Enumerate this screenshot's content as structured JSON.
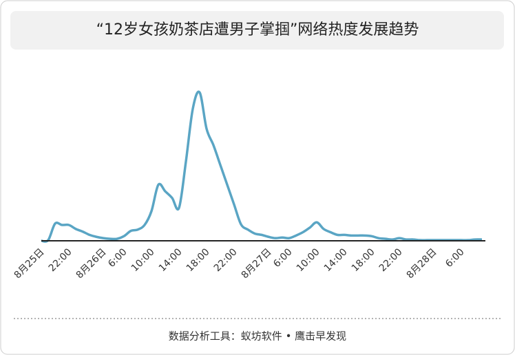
{
  "chart_data": {
    "type": "line",
    "title": "“12岁女孩奶茶店遭男子掌掴”网络热度发展趋势",
    "footer": "数据分析工具：蚁坊软件 • 鹰击早发现",
    "categories": [
      "8月25日",
      null,
      null,
      null,
      "22:00",
      null,
      null,
      null,
      null,
      "8月26日",
      null,
      null,
      "6:00",
      null,
      null,
      null,
      "10:00",
      null,
      null,
      null,
      "14:00",
      null,
      null,
      null,
      "18:00",
      null,
      null,
      null,
      "22:00",
      null,
      null,
      null,
      null,
      "8月27日",
      null,
      null,
      "6:00",
      null,
      null,
      null,
      "10:00",
      null,
      null,
      null,
      "14:00",
      null,
      null,
      null,
      "18:00",
      null,
      null,
      null,
      "22:00",
      null,
      null,
      null,
      null,
      "8月28日",
      null,
      null,
      null,
      "6:00",
      null,
      null,
      null
    ],
    "series": [
      {
        "name": "热度",
        "color": "#5aa5c4",
        "values": [
          0,
          1,
          26,
          24,
          24,
          18,
          14,
          9,
          6,
          4,
          3,
          3,
          7,
          15,
          17,
          24,
          45,
          85,
          75,
          65,
          50,
          120,
          200,
          225,
          170,
          145,
          115,
          85,
          55,
          25,
          17,
          11,
          9,
          6,
          4,
          5,
          4,
          8,
          13,
          20,
          28,
          18,
          13,
          9,
          9,
          8,
          8,
          8,
          7,
          4,
          3,
          2,
          4,
          2,
          2,
          1,
          1,
          1,
          1,
          1,
          1,
          1,
          1,
          2,
          2
        ]
      }
    ],
    "ylim": [
      0,
      240
    ]
  }
}
